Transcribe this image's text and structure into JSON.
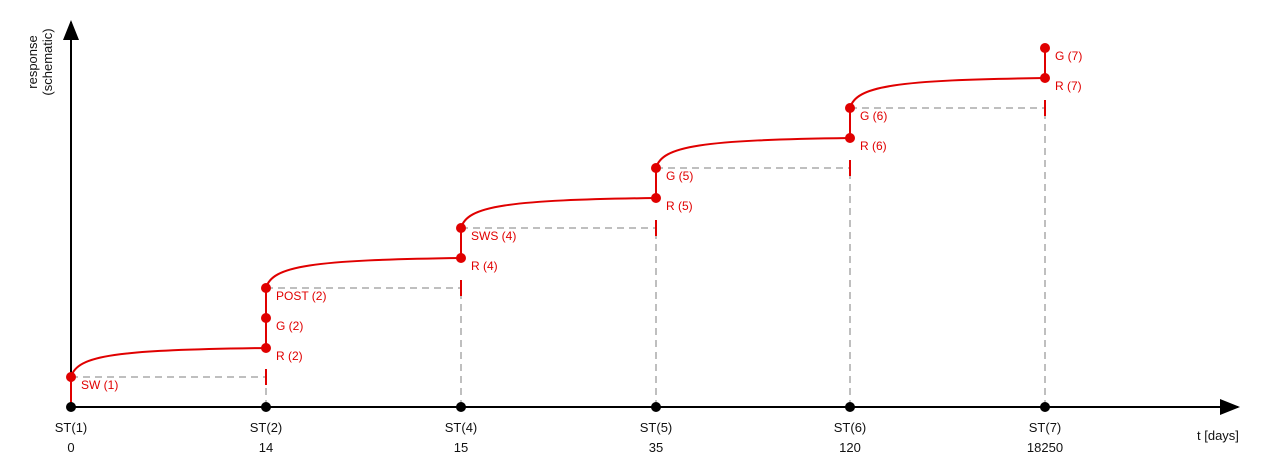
{
  "axes": {
    "y_label_line1": "response",
    "y_label_line2": "(schematic)",
    "x_label": "t [days]"
  },
  "stages": [
    {
      "name": "ST(1)",
      "day": "0"
    },
    {
      "name": "ST(2)",
      "day": "14"
    },
    {
      "name": "ST(4)",
      "day": "15"
    },
    {
      "name": "ST(5)",
      "day": "35"
    },
    {
      "name": "ST(6)",
      "day": "120"
    },
    {
      "name": "ST(7)",
      "day": "18250"
    }
  ],
  "points": [
    {
      "label": "SW (1)"
    },
    {
      "label": "R (2)"
    },
    {
      "label": "G (2)"
    },
    {
      "label": "POST (2)"
    },
    {
      "label": "R (4)"
    },
    {
      "label": "SWS (4)"
    },
    {
      "label": "R (5)"
    },
    {
      "label": "G (5)"
    },
    {
      "label": "R (6)"
    },
    {
      "label": "G (6)"
    },
    {
      "label": "R (7)"
    },
    {
      "label": "G (7)"
    }
  ]
}
